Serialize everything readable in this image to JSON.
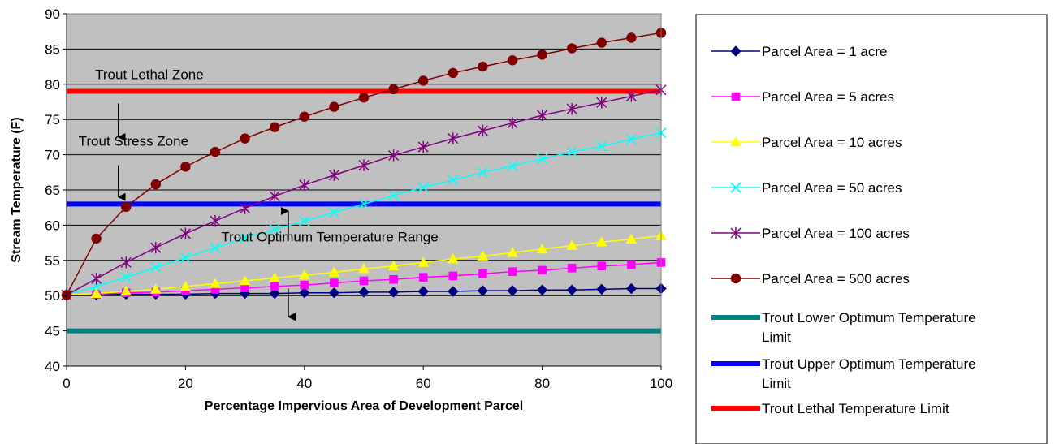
{
  "chart_data": {
    "type": "line",
    "title": "",
    "xlabel": "Percentage Impervious Area of Development Parcel",
    "ylabel": "Stream Temperature (F)",
    "xlim": [
      0,
      100
    ],
    "ylim": [
      40,
      90
    ],
    "x_ticks": [
      "0",
      "20",
      "40",
      "60",
      "80",
      "100"
    ],
    "y_ticks": [
      "40",
      "45",
      "50",
      "55",
      "60",
      "65",
      "70",
      "75",
      "80",
      "85",
      "90"
    ],
    "grid": "horizontal",
    "plot_background": "#c0c0c0",
    "legend_position": "right",
    "x": [
      0,
      5,
      10,
      15,
      20,
      25,
      30,
      35,
      40,
      45,
      50,
      55,
      60,
      65,
      70,
      75,
      80,
      85,
      90,
      95,
      100
    ],
    "series": [
      {
        "name": "Parcel Area = 1 acre",
        "color": "#000080",
        "marker": "diamond",
        "values": [
          50.1,
          50.1,
          50.2,
          50.2,
          50.2,
          50.3,
          50.3,
          50.3,
          50.4,
          50.4,
          50.5,
          50.5,
          50.6,
          50.6,
          50.7,
          50.7,
          50.8,
          50.8,
          50.9,
          51.0,
          51.0
        ]
      },
      {
        "name": "Parcel Area = 5 acres",
        "color": "#ff00ff",
        "marker": "square",
        "values": [
          50.1,
          50.2,
          50.4,
          50.5,
          50.7,
          50.9,
          51.1,
          51.3,
          51.5,
          51.8,
          52.1,
          52.3,
          52.6,
          52.8,
          53.1,
          53.4,
          53.6,
          53.9,
          54.2,
          54.4,
          54.7
        ]
      },
      {
        "name": "Parcel Area = 10 acres",
        "color": "#ffff00",
        "marker": "triangle",
        "values": [
          50.1,
          50.3,
          50.6,
          50.9,
          51.3,
          51.7,
          52.1,
          52.5,
          52.9,
          53.3,
          53.8,
          54.2,
          54.7,
          55.2,
          55.6,
          56.1,
          56.6,
          57.1,
          57.6,
          58.0,
          58.5
        ]
      },
      {
        "name": "Parcel Area = 50 acres",
        "color": "#00ffff",
        "marker": "x",
        "values": [
          50.1,
          51.3,
          52.6,
          54.0,
          55.4,
          56.8,
          58.2,
          59.4,
          60.6,
          61.8,
          63.0,
          64.2,
          65.4,
          66.4,
          67.5,
          68.4,
          69.4,
          70.4,
          71.2,
          72.2,
          73.1
        ]
      },
      {
        "name": "Parcel Area = 100 acres",
        "color": "#800080",
        "marker": "star",
        "values": [
          50.1,
          52.4,
          54.7,
          56.8,
          58.8,
          60.6,
          62.4,
          64.1,
          65.7,
          67.1,
          68.5,
          69.9,
          71.1,
          72.3,
          73.4,
          74.5,
          75.6,
          76.5,
          77.4,
          78.3,
          79.2
        ]
      },
      {
        "name": "Parcel Area = 500 acres",
        "color": "#800000",
        "marker": "circle",
        "values": [
          50.1,
          58.1,
          62.6,
          65.8,
          68.3,
          70.4,
          72.3,
          73.9,
          75.4,
          76.8,
          78.1,
          79.3,
          80.5,
          81.6,
          82.5,
          83.4,
          84.2,
          85.1,
          85.9,
          86.6,
          87.3
        ]
      },
      {
        "name": "Trout Lower Optimum Temperature Limit",
        "color": "#008080",
        "marker": "none",
        "constant": 45
      },
      {
        "name": "Trout Upper Optimum Temperature Limit",
        "color": "#0000ff",
        "marker": "none",
        "constant": 63
      },
      {
        "name": "Trout Lethal Temperature Limit",
        "color": "#ff0000",
        "marker": "none",
        "constant": 79
      }
    ],
    "annotations": [
      {
        "text": "Trout Lethal Zone",
        "x": 4.8,
        "y": 80.7
      },
      {
        "text": "Trout Stress Zone",
        "x": 2.0,
        "y": 71.3
      },
      {
        "text": "Trout Optimum Temperature Range",
        "x": 26.0,
        "y": 57.7
      }
    ],
    "arrows": [
      {
        "x": 8.7,
        "y_from": 77.3,
        "y_to": 72.5
      },
      {
        "x": 8.7,
        "y_from": 68.5,
        "y_to": 64.0
      },
      {
        "x": 37.3,
        "y_from": 57.8,
        "y_to": 62.0
      },
      {
        "x": 37.3,
        "y_from": 51.0,
        "y_to": 47.0
      }
    ]
  }
}
